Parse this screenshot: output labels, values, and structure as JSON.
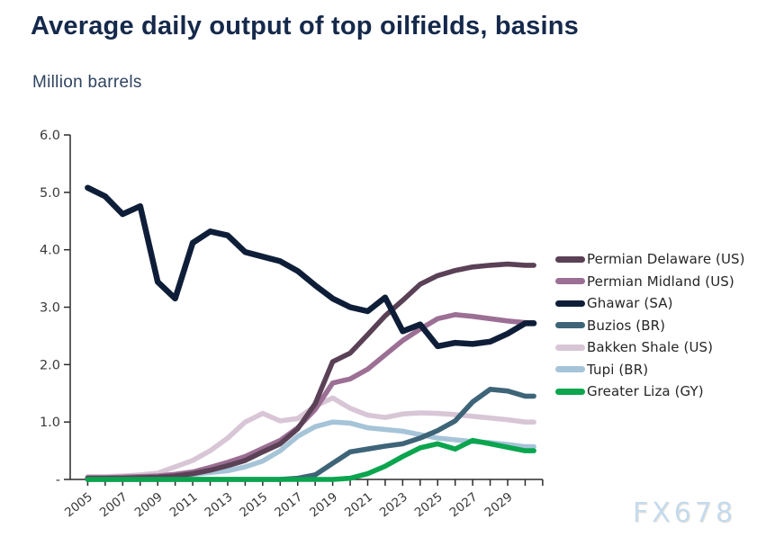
{
  "header": {
    "title": "Average daily output of top oilfields, basins",
    "subtitle": "Million barrels"
  },
  "watermark": "FX678",
  "colors": {
    "title": "#15294b",
    "subtitle": "#2f4360",
    "axis": "#2b2b2b",
    "tick_label": "#3a3a3a",
    "legend_label": "#262626",
    "watermark": "#c4daee"
  },
  "chart_data": {
    "type": "line",
    "title": "Average daily output of top oilfields, basins",
    "ylabel": "Million barrels",
    "xlabel": "",
    "grid": false,
    "legend_position": "right",
    "ylim": [
      0,
      6
    ],
    "y_ticks": [
      {
        "value": 0,
        "label": "-"
      },
      {
        "value": 1,
        "label": "1.0"
      },
      {
        "value": 2,
        "label": "2.0"
      },
      {
        "value": 3,
        "label": "3.0"
      },
      {
        "value": 4,
        "label": "4.0"
      },
      {
        "value": 5,
        "label": "5.0"
      },
      {
        "value": 6,
        "label": "6.0"
      }
    ],
    "x": [
      2005,
      2006,
      2007,
      2008,
      2009,
      2010,
      2011,
      2012,
      2013,
      2014,
      2015,
      2016,
      2017,
      2018,
      2019,
      2020,
      2021,
      2022,
      2023,
      2024,
      2025,
      2026,
      2027,
      2028,
      2029,
      2030
    ],
    "x_tick_labels": [
      "2005",
      "2007",
      "2009",
      "2011",
      "2013",
      "2015",
      "2017",
      "2019",
      "2021",
      "2023",
      "2025",
      "2027",
      "2029"
    ],
    "series": [
      {
        "name": "Permian Delaware (US)",
        "color": "#5a4156",
        "values": [
          0.02,
          0.02,
          0.02,
          0.03,
          0.04,
          0.06,
          0.1,
          0.16,
          0.24,
          0.33,
          0.48,
          0.62,
          0.88,
          1.32,
          2.05,
          2.2,
          2.52,
          2.85,
          3.12,
          3.4,
          3.55,
          3.64,
          3.7,
          3.73,
          3.75,
          3.73
        ]
      },
      {
        "name": "Permian Midland (US)",
        "color": "#9c6f94",
        "values": [
          0.03,
          0.03,
          0.04,
          0.05,
          0.06,
          0.09,
          0.13,
          0.21,
          0.3,
          0.4,
          0.54,
          0.68,
          0.9,
          1.22,
          1.68,
          1.75,
          1.92,
          2.17,
          2.42,
          2.62,
          2.8,
          2.87,
          2.84,
          2.8,
          2.76,
          2.73
        ]
      },
      {
        "name": "Ghawar (SA)",
        "color": "#0f1e38",
        "values": [
          5.08,
          4.93,
          4.62,
          4.76,
          3.44,
          3.15,
          4.12,
          4.32,
          4.25,
          3.96,
          3.88,
          3.8,
          3.63,
          3.38,
          3.15,
          3.0,
          2.93,
          3.17,
          2.58,
          2.7,
          2.32,
          2.38,
          2.36,
          2.4,
          2.54,
          2.72
        ]
      },
      {
        "name": "Buzios (BR)",
        "color": "#3e6478",
        "values": [
          0,
          0,
          0,
          0,
          0,
          0,
          0,
          0,
          0,
          0,
          0,
          0,
          0.02,
          0.08,
          0.28,
          0.48,
          0.53,
          0.58,
          0.62,
          0.72,
          0.85,
          1.02,
          1.35,
          1.57,
          1.54,
          1.45
        ]
      },
      {
        "name": "Bakken Shale (US)",
        "color": "#d8c6d6",
        "values": [
          0.05,
          0.05,
          0.06,
          0.08,
          0.11,
          0.22,
          0.33,
          0.5,
          0.72,
          1.0,
          1.15,
          1.02,
          1.06,
          1.28,
          1.42,
          1.24,
          1.12,
          1.08,
          1.14,
          1.16,
          1.15,
          1.13,
          1.1,
          1.07,
          1.04,
          1.0
        ]
      },
      {
        "name": "Tupi (BR)",
        "color": "#a6c4d8",
        "values": [
          0.02,
          0.02,
          0.02,
          0.03,
          0.04,
          0.06,
          0.09,
          0.12,
          0.15,
          0.22,
          0.32,
          0.5,
          0.75,
          0.92,
          1.0,
          0.98,
          0.9,
          0.87,
          0.84,
          0.78,
          0.72,
          0.69,
          0.66,
          0.64,
          0.61,
          0.57
        ]
      },
      {
        "name": "Greater Liza (GY)",
        "color": "#0aa54e",
        "values": [
          0,
          0,
          0,
          0,
          0,
          0,
          0,
          0,
          0,
          0,
          0,
          0,
          0,
          0,
          0.0,
          0.02,
          0.1,
          0.23,
          0.4,
          0.55,
          0.62,
          0.53,
          0.68,
          0.62,
          0.56,
          0.5
        ]
      }
    ],
    "draw_order": [
      "Tupi (BR)",
      "Bakken Shale (US)",
      "Permian Midland (US)",
      "Permian Delaware (US)",
      "Ghawar (SA)",
      "Buzios (BR)",
      "Greater Liza (GY)"
    ]
  }
}
